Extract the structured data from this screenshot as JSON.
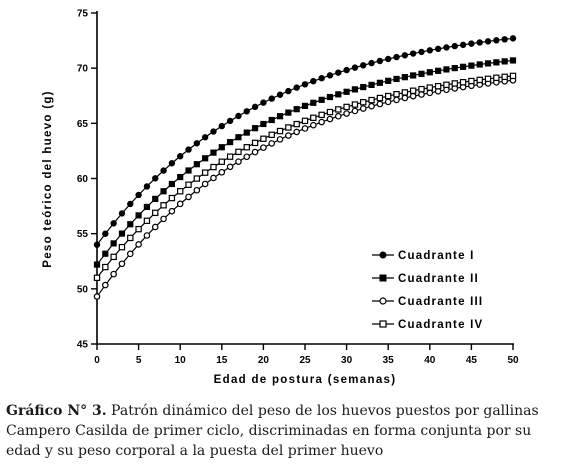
{
  "chart_data": {
    "type": "line",
    "xlabel": "Edad de postura (semanas)",
    "ylabel": "Peso teórico del huevo (g)",
    "xlim": [
      0,
      50
    ],
    "ylim": [
      45,
      75
    ],
    "xticks": [
      "0",
      "5",
      "10",
      "15",
      "20",
      "25",
      "30",
      "35",
      "40",
      "45",
      "50"
    ],
    "yticks": [
      "45",
      "50",
      "55",
      "60",
      "65",
      "70",
      "75"
    ],
    "legend_position": "inside-lower-right",
    "x_step": 1,
    "series": [
      {
        "name": "Cuadrante I",
        "marker": "filled-circle",
        "start": 54.0,
        "end": 72.7
      },
      {
        "name": "Cuadrante II",
        "marker": "filled-square",
        "start": 52.2,
        "end": 70.7
      },
      {
        "name": "Cuadrante III",
        "marker": "open-circle",
        "start": 49.3,
        "end": 68.9
      },
      {
        "name": "Cuadrante IV",
        "marker": "open-square",
        "start": 51.0,
        "end": 69.3
      }
    ]
  },
  "caption": {
    "label": "Gráfico N° 3.",
    "text": " Patrón dinámico del peso de los huevos puestos por gallinas Campero Casilda de primer ciclo, discriminadas en forma conjunta por su edad y su peso corporal a la puesta del primer huevo"
  }
}
